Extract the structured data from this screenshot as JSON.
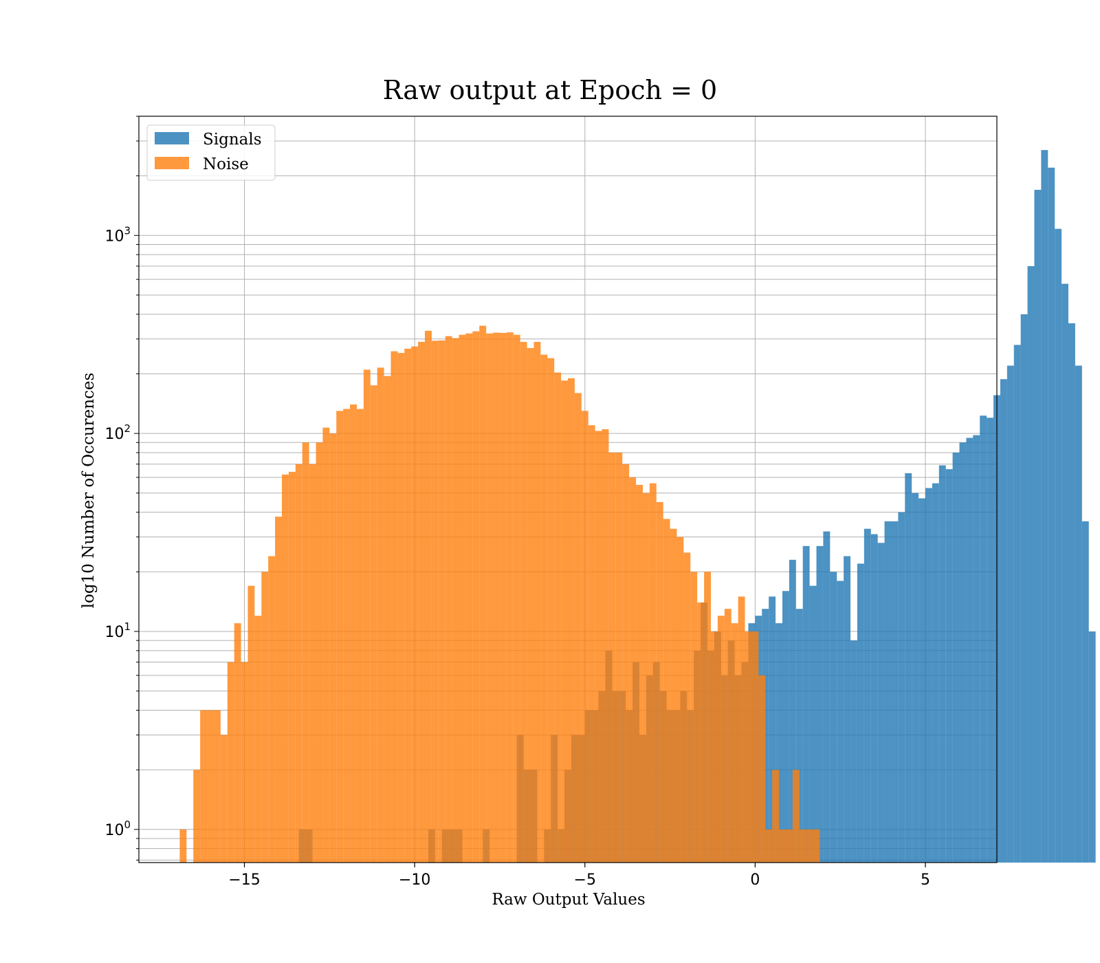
{
  "chart_data": {
    "type": "bar",
    "title": "Raw output at Epoch = 0",
    "xlabel": "Raw Output Values",
    "ylabel": "log10 Number of Occurences",
    "xlim": [
      -18.1,
      7.1
    ],
    "ylim": [
      0.68,
      4000
    ],
    "yscale": "log",
    "grid": true,
    "legend_position": "top-left",
    "x_ticks": [
      {
        "value": -15,
        "label": "−15"
      },
      {
        "value": -10,
        "label": "−10"
      },
      {
        "value": -5,
        "label": "−5"
      },
      {
        "value": 0,
        "label": "0"
      },
      {
        "value": 5,
        "label": "5"
      }
    ],
    "y_ticks": [
      {
        "value": 1,
        "base": "10",
        "exp": "0"
      },
      {
        "value": 10,
        "base": "10",
        "exp": "1"
      },
      {
        "value": 100,
        "base": "10",
        "exp": "2"
      },
      {
        "value": 1000,
        "base": "10",
        "exp": "3"
      }
    ],
    "series": [
      {
        "name": "Signals",
        "color": "#1f77b4",
        "x_start": -13.4,
        "bin_width": 0.2,
        "counts": [
          1,
          1,
          0,
          0,
          0,
          0,
          0,
          0,
          0,
          0,
          0,
          0,
          0,
          0,
          0,
          0,
          0,
          0,
          0,
          1,
          0,
          1,
          1,
          1,
          0,
          0,
          0,
          1,
          0,
          0,
          0,
          0,
          3,
          2,
          2,
          0,
          1,
          3,
          1,
          2,
          3,
          3,
          4,
          4,
          5,
          8,
          5,
          5,
          4,
          7,
          3,
          6,
          7,
          5,
          4,
          4,
          5,
          4,
          8,
          14,
          8,
          10,
          6,
          9,
          6,
          7,
          11,
          12,
          13,
          15,
          11,
          16,
          23,
          13,
          27,
          17,
          27,
          32,
          20,
          18,
          24,
          9,
          22,
          33,
          31,
          28,
          36,
          36,
          40,
          63,
          50,
          47,
          53,
          56,
          69,
          66,
          80,
          90,
          95,
          98,
          123,
          120,
          156,
          188,
          220,
          280,
          400,
          700,
          1700,
          2700,
          2200,
          1080,
          570,
          360,
          220,
          36,
          10
        ]
      },
      {
        "name": "Noise",
        "color": "#ff7f0e",
        "x_start": -16.9,
        "bin_width": 0.2,
        "counts": [
          1,
          0,
          2,
          4,
          4,
          4,
          3,
          7,
          11,
          7,
          17,
          12,
          20,
          24,
          38,
          62,
          64,
          70,
          90,
          70,
          90,
          107,
          100,
          130,
          133,
          140,
          133,
          210,
          175,
          215,
          195,
          260,
          255,
          268,
          275,
          290,
          330,
          294,
          295,
          310,
          303,
          315,
          320,
          328,
          350,
          320,
          323,
          322,
          324,
          315,
          290,
          270,
          290,
          250,
          240,
          203,
          185,
          190,
          160,
          130,
          110,
          103,
          105,
          80,
          80,
          70,
          60,
          55,
          50,
          56,
          45,
          37,
          33,
          30,
          25,
          20,
          14,
          20,
          10,
          12,
          13,
          11,
          15,
          10,
          10,
          6,
          1,
          2,
          1,
          1,
          2,
          1,
          1,
          1
        ]
      }
    ]
  }
}
